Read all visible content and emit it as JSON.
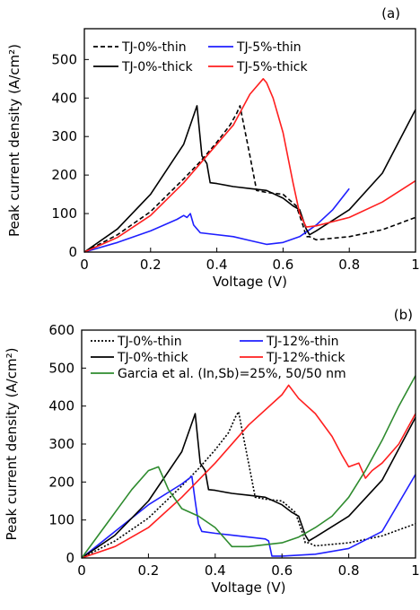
{
  "chart_data": [
    {
      "panel_label": "(a)",
      "type": "line",
      "xlabel": "Voltage (V)",
      "ylabel": "Peak current density (A/cm²)",
      "xlim": [
        0,
        1
      ],
      "ylim": [
        0,
        580
      ],
      "xticks": [
        0,
        0.2,
        0.4,
        0.6,
        0.8,
        1
      ],
      "xtick_labels": [
        "0",
        "0.2",
        "0.4",
        "0.6",
        "0.8",
        "1"
      ],
      "yticks": [
        0,
        100,
        200,
        300,
        400,
        500
      ],
      "ytick_labels": [
        "0",
        "100",
        "200",
        "300",
        "400",
        "500"
      ],
      "grid": false,
      "legend_position": "top-left",
      "series": [
        {
          "name": "TJ-0%-thin",
          "color": "#000000",
          "dash": "dashed",
          "x": [
            0,
            0.1,
            0.2,
            0.3,
            0.35,
            0.4,
            0.44,
            0.46,
            0.47,
            0.5,
            0.52,
            0.55,
            0.6,
            0.64,
            0.66,
            0.67,
            0.68,
            0.7,
            0.8,
            0.9,
            1.0
          ],
          "y": [
            0,
            45,
            105,
            190,
            235,
            285,
            330,
            360,
            380,
            250,
            160,
            155,
            150,
            120,
            70,
            40,
            40,
            32,
            40,
            58,
            90
          ]
        },
        {
          "name": "TJ-5%-thin",
          "color": "#1f1fff",
          "dash": "solid",
          "x": [
            0,
            0.1,
            0.2,
            0.28,
            0.3,
            0.31,
            0.32,
            0.33,
            0.35,
            0.45,
            0.5,
            0.55,
            0.6,
            0.65,
            0.7,
            0.75,
            0.8
          ],
          "y": [
            0,
            25,
            55,
            85,
            95,
            90,
            100,
            70,
            50,
            40,
            30,
            20,
            25,
            40,
            70,
            110,
            165
          ]
        },
        {
          "name": "TJ-0%-thick",
          "color": "#000000",
          "dash": "solid",
          "x": [
            0,
            0.1,
            0.2,
            0.3,
            0.34,
            0.355,
            0.37,
            0.38,
            0.4,
            0.45,
            0.5,
            0.55,
            0.6,
            0.63,
            0.65,
            0.67,
            0.68,
            0.7,
            0.8,
            0.9,
            1.0
          ],
          "y": [
            0,
            60,
            150,
            280,
            380,
            250,
            230,
            180,
            178,
            170,
            165,
            160,
            140,
            120,
            110,
            60,
            45,
            55,
            110,
            205,
            370
          ]
        },
        {
          "name": "TJ-5%-thick",
          "color": "#ff1f1f",
          "dash": "solid",
          "x": [
            0,
            0.1,
            0.2,
            0.3,
            0.4,
            0.45,
            0.5,
            0.54,
            0.55,
            0.57,
            0.6,
            0.63,
            0.65,
            0.67,
            0.7,
            0.8,
            0.9,
            1.0
          ],
          "y": [
            0,
            38,
            95,
            180,
            280,
            330,
            410,
            450,
            440,
            400,
            310,
            180,
            100,
            65,
            68,
            90,
            130,
            185
          ]
        }
      ]
    },
    {
      "panel_label": "(b)",
      "type": "line",
      "xlabel": "Voltage (V)",
      "ylabel": "Peak current density (A/cm²)",
      "xlim": [
        0,
        1
      ],
      "ylim": [
        0,
        600
      ],
      "xticks": [
        0,
        0.2,
        0.4,
        0.6,
        0.8,
        1
      ],
      "xtick_labels": [
        "0",
        "0.2",
        "0.4",
        "0.6",
        "0.8",
        "1"
      ],
      "yticks": [
        0,
        100,
        200,
        300,
        400,
        500,
        600
      ],
      "ytick_labels": [
        "0",
        "100",
        "200",
        "300",
        "400",
        "500",
        "600"
      ],
      "grid": false,
      "legend_position": "top",
      "series": [
        {
          "name": "TJ-0%-thin",
          "color": "#000000",
          "dash": "dotted",
          "x": [
            0,
            0.1,
            0.2,
            0.3,
            0.35,
            0.4,
            0.44,
            0.46,
            0.47,
            0.5,
            0.52,
            0.55,
            0.6,
            0.64,
            0.66,
            0.67,
            0.68,
            0.7,
            0.8,
            0.9,
            1.0
          ],
          "y": [
            0,
            45,
            105,
            190,
            235,
            285,
            330,
            370,
            385,
            250,
            160,
            155,
            150,
            120,
            70,
            40,
            40,
            32,
            40,
            58,
            90
          ]
        },
        {
          "name": "TJ-12%-thin",
          "color": "#1f1fff",
          "dash": "solid",
          "x": [
            0,
            0.1,
            0.2,
            0.3,
            0.33,
            0.34,
            0.35,
            0.36,
            0.4,
            0.45,
            0.5,
            0.55,
            0.56,
            0.57,
            0.6,
            0.7,
            0.8,
            0.9,
            1.0
          ],
          "y": [
            0,
            70,
            140,
            195,
            215,
            150,
            90,
            70,
            65,
            60,
            55,
            50,
            45,
            5,
            5,
            10,
            25,
            70,
            220
          ]
        },
        {
          "name": "TJ-0%-thick",
          "color": "#000000",
          "dash": "solid",
          "x": [
            0,
            0.1,
            0.2,
            0.3,
            0.34,
            0.355,
            0.37,
            0.38,
            0.4,
            0.45,
            0.5,
            0.55,
            0.6,
            0.63,
            0.65,
            0.67,
            0.68,
            0.7,
            0.8,
            0.9,
            1.0
          ],
          "y": [
            0,
            60,
            150,
            280,
            380,
            250,
            230,
            180,
            178,
            170,
            165,
            160,
            140,
            120,
            110,
            60,
            45,
            55,
            110,
            205,
            370
          ]
        },
        {
          "name": "TJ-12%-thick",
          "color": "#ff1f1f",
          "dash": "solid",
          "x": [
            0,
            0.1,
            0.2,
            0.3,
            0.4,
            0.5,
            0.6,
            0.62,
            0.65,
            0.7,
            0.75,
            0.78,
            0.8,
            0.83,
            0.85,
            0.87,
            0.9,
            0.95,
            1.0
          ],
          "y": [
            0,
            30,
            80,
            160,
            250,
            350,
            430,
            455,
            420,
            380,
            320,
            270,
            240,
            250,
            210,
            230,
            250,
            300,
            380
          ]
        },
        {
          "name": "Garcia et al. (In,Sb)=25%, 50/50 nm",
          "color": "#2e8b2e",
          "dash": "solid",
          "x": [
            0,
            0.05,
            0.1,
            0.15,
            0.2,
            0.23,
            0.26,
            0.3,
            0.35,
            0.4,
            0.45,
            0.5,
            0.55,
            0.6,
            0.65,
            0.7,
            0.75,
            0.8,
            0.85,
            0.9,
            0.95,
            1.0
          ],
          "y": [
            0,
            60,
            120,
            180,
            230,
            240,
            180,
            130,
            110,
            80,
            30,
            30,
            35,
            40,
            55,
            80,
            110,
            160,
            230,
            310,
            400,
            480
          ]
        }
      ]
    }
  ]
}
